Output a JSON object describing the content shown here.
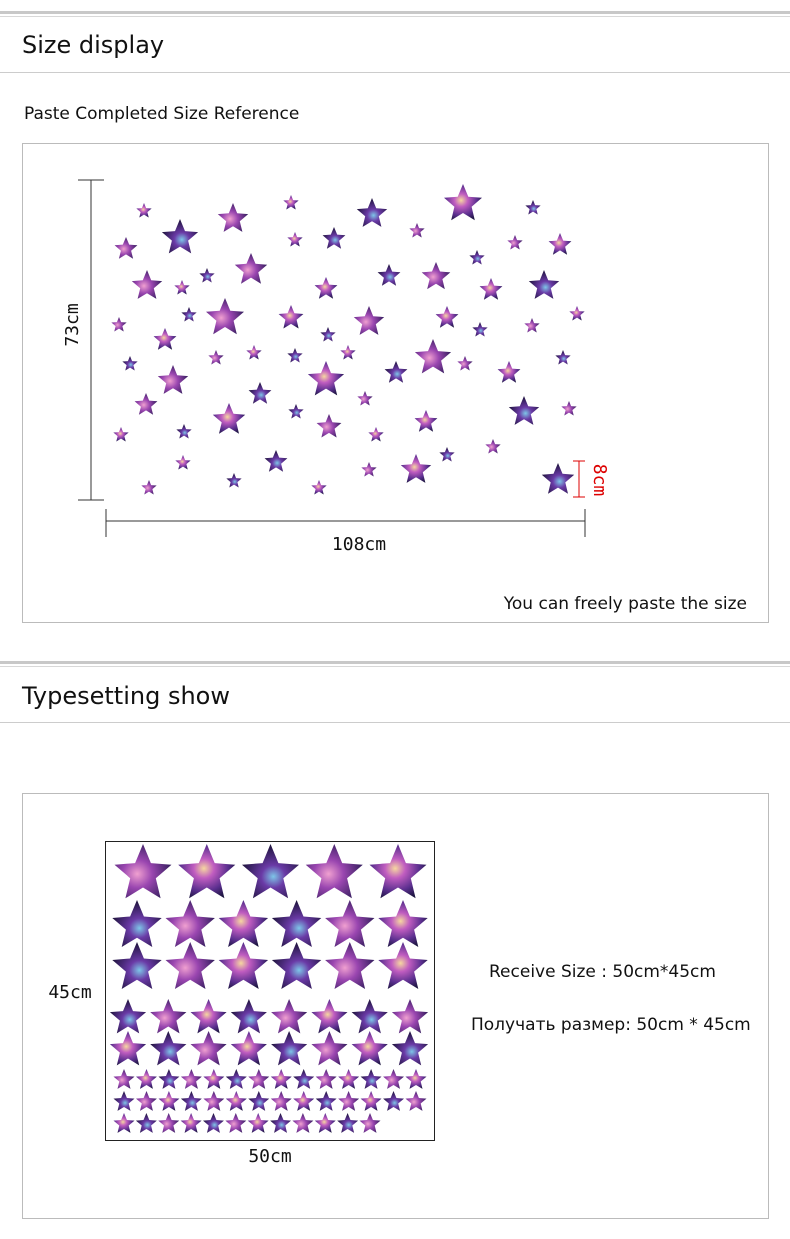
{
  "section1": {
    "title": "Size display",
    "subtitle": "Paste Completed Size Reference",
    "height_label": "73cm",
    "width_label": "108cm",
    "star_label": "8cm",
    "note": "You can freely paste the size"
  },
  "section2": {
    "title": "Typesetting show",
    "height_label": "45cm",
    "width_label": "50cm",
    "receive_en": "Receive Size : 50cm*45cm",
    "receive_ru": "Получать размер: 50cm * 45cm"
  }
}
